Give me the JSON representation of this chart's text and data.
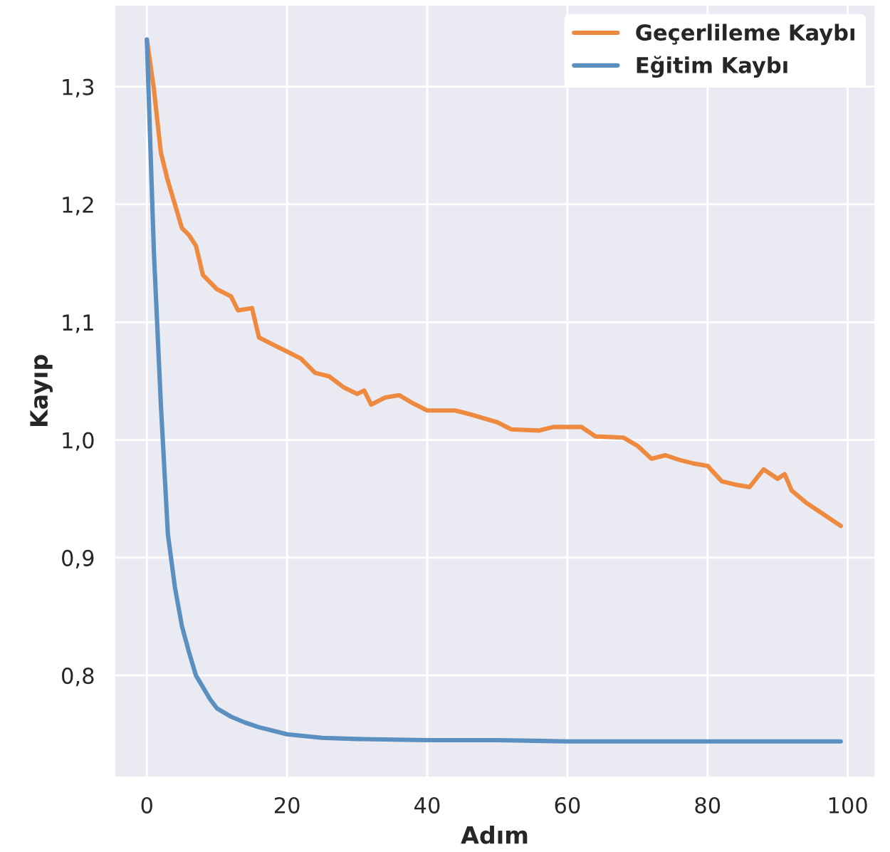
{
  "chart_data": {
    "type": "line",
    "xlabel": "Adım",
    "ylabel": "Kayıp",
    "xlim": [
      -4.7,
      104
    ],
    "ylim": [
      0.713,
      1.37
    ],
    "xticks": [
      0,
      20,
      40,
      60,
      80,
      100
    ],
    "yticks": [
      {
        "value": 0.8,
        "label": "0,8"
      },
      {
        "value": 0.9,
        "label": "0,9"
      },
      {
        "value": 1.0,
        "label": "1,0"
      },
      {
        "value": 1.1,
        "label": "1,1"
      },
      {
        "value": 1.2,
        "label": "1,2"
      },
      {
        "value": 1.3,
        "label": "1,3"
      }
    ],
    "grid": true,
    "legend": "top right",
    "series": [
      {
        "name": "Geçerlileme Kaybı",
        "color": "#ee8a3f",
        "x": [
          0,
          1,
          2,
          3,
          4,
          5,
          6,
          7,
          8,
          10,
          12,
          13,
          15,
          16,
          18,
          20,
          22,
          24,
          26,
          28,
          30,
          31,
          32,
          34,
          36,
          38,
          40,
          44,
          46,
          50,
          52,
          56,
          58,
          60,
          62,
          64,
          68,
          70,
          72,
          74,
          76,
          78,
          80,
          82,
          84,
          86,
          88,
          90,
          91,
          92,
          94,
          96,
          99
        ],
        "values": [
          1.34,
          1.298,
          1.244,
          1.22,
          1.2,
          1.18,
          1.174,
          1.165,
          1.14,
          1.128,
          1.122,
          1.11,
          1.112,
          1.087,
          1.081,
          1.075,
          1.069,
          1.057,
          1.054,
          1.045,
          1.039,
          1.042,
          1.03,
          1.036,
          1.038,
          1.031,
          1.025,
          1.025,
          1.022,
          1.015,
          1.009,
          1.008,
          1.011,
          1.011,
          1.011,
          1.003,
          1.002,
          0.995,
          0.984,
          0.987,
          0.983,
          0.98,
          0.978,
          0.965,
          0.962,
          0.96,
          0.975,
          0.967,
          0.971,
          0.957,
          0.947,
          0.939,
          0.927
        ]
      },
      {
        "name": "Eğitim Kaybı",
        "color": "#5a8fc0",
        "x": [
          0,
          1,
          2,
          3,
          4,
          5,
          6,
          7,
          8,
          9,
          10,
          12,
          14,
          16,
          18,
          20,
          25,
          30,
          40,
          50,
          60,
          70,
          80,
          90,
          99
        ],
        "values": [
          1.34,
          1.16,
          1.03,
          0.92,
          0.875,
          0.842,
          0.82,
          0.8,
          0.79,
          0.78,
          0.772,
          0.765,
          0.76,
          0.756,
          0.753,
          0.75,
          0.747,
          0.746,
          0.745,
          0.745,
          0.744,
          0.744,
          0.744,
          0.744,
          0.744
        ]
      }
    ]
  }
}
